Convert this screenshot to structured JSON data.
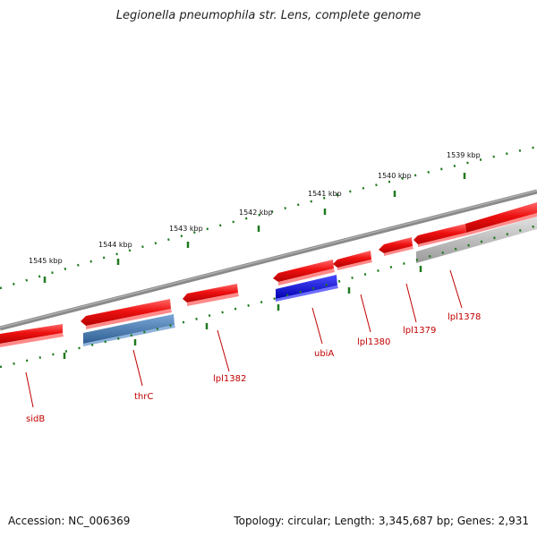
{
  "title": "Legionella pneumophila str. Lens, complete genome",
  "accession_text": "Accession: NC_006369",
  "summary_text": "Topology: circular; Length: 3,345,687 bp; Genes: 2,931",
  "colors": {
    "backbone": "#8a8a8a",
    "tick": "#1f7a1f",
    "label": "#c00000",
    "cds_red": "#ee1111",
    "gene_blue": "#4f80b8",
    "rna_blue": "#1212e6",
    "pseudo_gray": "#bdbdbd"
  },
  "ticks": [
    {
      "label": "1545 kbp"
    },
    {
      "label": "1544 kbp"
    },
    {
      "label": "1543 kbp"
    },
    {
      "label": "1542 kbp"
    },
    {
      "label": "1541 kbp"
    },
    {
      "label": "1540 kbp"
    },
    {
      "label": "1539 kbp"
    }
  ],
  "genes": [
    {
      "name": "sidB",
      "kind": "cds",
      "color": "#ee1111"
    },
    {
      "name": "thrC",
      "kind": "cds",
      "color": "#ee1111"
    },
    {
      "name": "lpl1382",
      "kind": "cds",
      "color": "#ee1111"
    },
    {
      "name": "ubiA",
      "kind": "cds",
      "color": "#ee1111"
    },
    {
      "name": "lpl1380",
      "kind": "cds",
      "color": "#ee1111"
    },
    {
      "name": "lpl1379",
      "kind": "cds",
      "color": "#ee1111"
    },
    {
      "name": "lpl1378",
      "kind": "cds",
      "color": "#ee1111"
    }
  ],
  "gene_labels": [
    {
      "text": "sidB"
    },
    {
      "text": "thrC"
    },
    {
      "text": "lpl1382"
    },
    {
      "text": "ubiA"
    },
    {
      "text": "lpl1380"
    },
    {
      "text": "lpl1379"
    },
    {
      "text": "lpl1378"
    }
  ]
}
